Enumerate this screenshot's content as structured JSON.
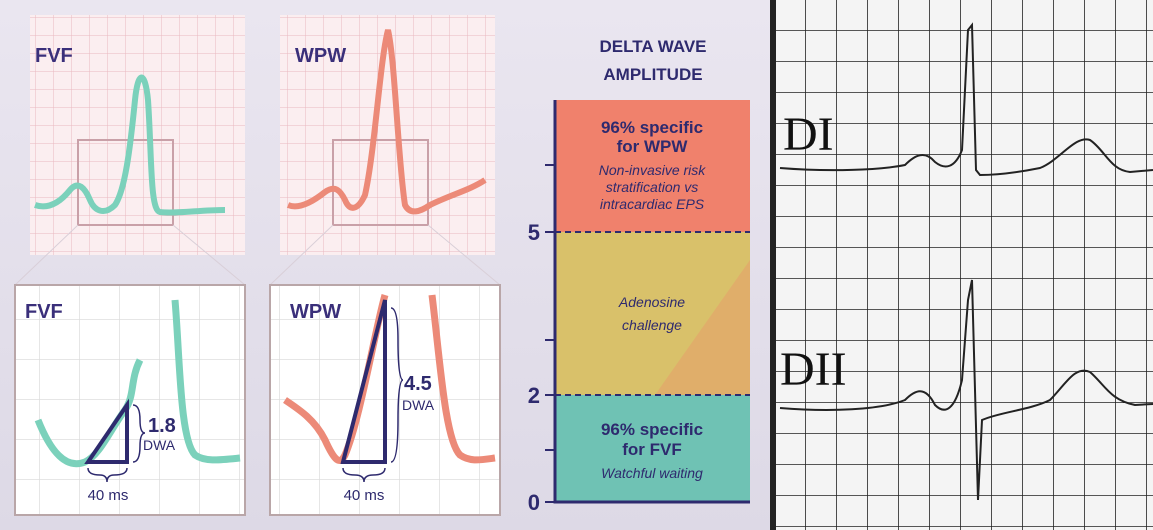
{
  "panels": [
    {
      "label": "FVF"
    },
    {
      "label": "WPW"
    }
  ],
  "zoom": [
    {
      "label": "FVF",
      "amplitude": "1.8",
      "unit": "DWA",
      "duration": "40 ms"
    },
    {
      "label": "WPW",
      "amplitude": "4.5",
      "unit": "DWA",
      "duration": "40 ms"
    }
  ],
  "scale": {
    "title_lines": [
      "DELTA WAVE",
      "AMPLITUDE"
    ],
    "ticks": [
      "5",
      "2",
      "0"
    ],
    "zones": [
      {
        "heading": [
          "96% specific",
          "for WPW"
        ],
        "note": [
          "Non-invasive risk",
          "stratification vs",
          "intracardiac EPS"
        ]
      },
      {
        "note": [
          "Adenosine",
          "challenge"
        ]
      },
      {
        "heading": [
          "96% specific",
          "for FVF"
        ],
        "note": [
          "Watchful waiting"
        ]
      }
    ]
  },
  "ecg": {
    "leads": [
      "DI",
      "DII"
    ]
  }
}
